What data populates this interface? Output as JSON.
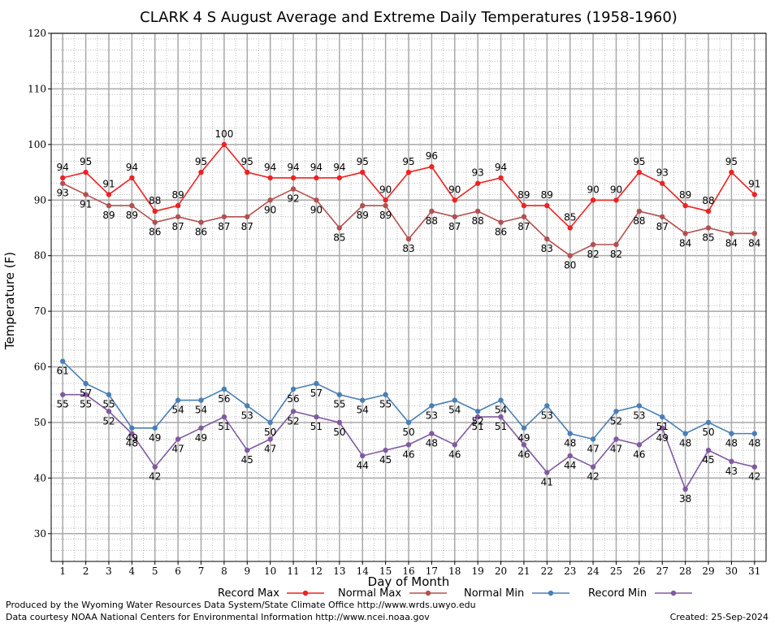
{
  "chart_data": {
    "type": "line",
    "title": "CLARK 4 S August Average and Extreme Daily Temperatures (1958-1960)",
    "xlabel": "Day of Month",
    "ylabel": "Temperature (F)",
    "ylim": [
      25,
      120
    ],
    "yticks": [
      30,
      40,
      50,
      60,
      70,
      80,
      90,
      100,
      110,
      120
    ],
    "x": [
      1,
      2,
      3,
      4,
      5,
      6,
      7,
      8,
      9,
      10,
      11,
      12,
      13,
      14,
      15,
      16,
      17,
      18,
      19,
      20,
      21,
      22,
      23,
      24,
      25,
      26,
      27,
      28,
      29,
      30,
      31
    ],
    "grid": true,
    "legend_position": "bottom",
    "series": [
      {
        "name": "Record Max",
        "color": "#ee2222",
        "values": [
          94,
          95,
          91,
          94,
          88,
          89,
          95,
          100,
          95,
          94,
          94,
          94,
          94,
          95,
          90,
          95,
          96,
          90,
          93,
          94,
          89,
          89,
          85,
          90,
          90,
          95,
          93,
          89,
          88,
          95,
          91
        ]
      },
      {
        "name": "Normal Max",
        "color": "#b45050",
        "values": [
          93,
          91,
          89,
          89,
          86,
          87,
          86,
          87,
          87,
          90,
          92,
          90,
          85,
          89,
          89,
          83,
          88,
          87,
          88,
          86,
          87,
          83,
          80,
          82,
          82,
          88,
          87,
          84,
          85,
          84,
          84
        ]
      },
      {
        "name": "Normal Min",
        "color": "#4a7fb5",
        "values": [
          61,
          57,
          55,
          49,
          49,
          54,
          54,
          56,
          53,
          50,
          56,
          57,
          55,
          54,
          55,
          50,
          53,
          54,
          52,
          54,
          49,
          53,
          48,
          47,
          52,
          53,
          51,
          48,
          50,
          48,
          48
        ]
      },
      {
        "name": "Record Min",
        "color": "#805aa0",
        "values": [
          55,
          55,
          52,
          48,
          42,
          47,
          49,
          51,
          45,
          47,
          52,
          51,
          50,
          44,
          45,
          46,
          48,
          46,
          51,
          51,
          46,
          41,
          44,
          42,
          47,
          46,
          49,
          38,
          45,
          43,
          42
        ]
      }
    ]
  },
  "footer": {
    "produced_by": "Produced by the Wyoming Water Resources Data System/State Climate Office http://www.wrds.uwyo.edu",
    "courtesy": "Data courtesy NOAA National Centers for Environmental Information http://www.ncei.noaa.gov",
    "created": "Created: 25-Sep-2024"
  }
}
